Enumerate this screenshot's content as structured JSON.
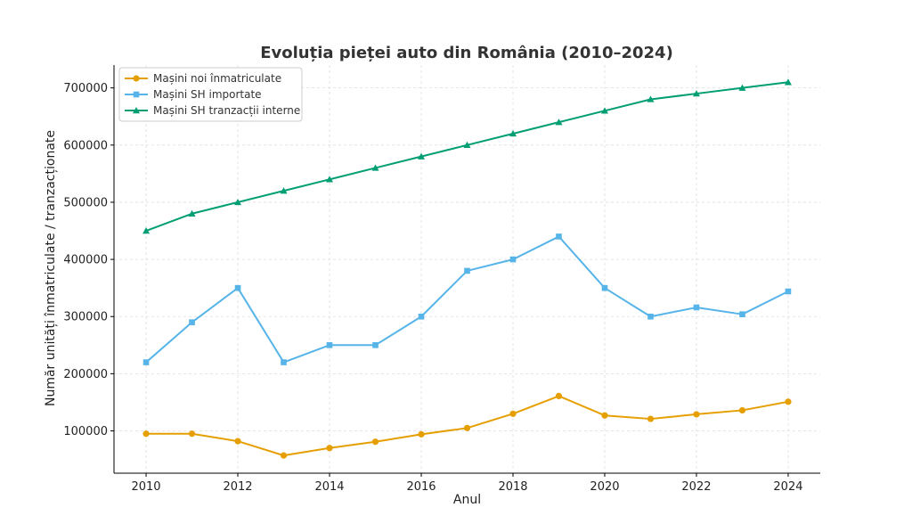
{
  "chart_data": {
    "type": "line",
    "title": "Evoluția pieței auto din România (2010–2024)",
    "xlabel": "Anul",
    "ylabel": "Număr unități înmatriculate / tranzacționate",
    "x": [
      2010,
      2011,
      2012,
      2013,
      2014,
      2015,
      2016,
      2017,
      2018,
      2019,
      2020,
      2021,
      2022,
      2023,
      2024
    ],
    "xticks": [
      2010,
      2012,
      2014,
      2016,
      2018,
      2020,
      2022,
      2024
    ],
    "yticks": [
      100000,
      200000,
      300000,
      400000,
      500000,
      600000,
      700000
    ],
    "xlim": [
      2009.3,
      2024.7
    ],
    "ylim": [
      26000,
      740000
    ],
    "grid": true,
    "legend_position": "top-left",
    "series": [
      {
        "name": "Mașini noi înmatriculate",
        "color": "#E69F00",
        "marker": "circle",
        "values": [
          95000,
          95000,
          82000,
          57000,
          70000,
          81000,
          94000,
          105000,
          130000,
          161000,
          127000,
          121000,
          129000,
          136000,
          151000
        ]
      },
      {
        "name": "Mașini SH importate",
        "color": "#56B4E9",
        "marker": "square",
        "values": [
          220000,
          290000,
          350000,
          220000,
          250000,
          250000,
          300000,
          380000,
          400000,
          440000,
          350000,
          300000,
          316000,
          304000,
          344000
        ]
      },
      {
        "name": "Mașini SH tranzacții interne",
        "color": "#009E73",
        "marker": "triangle",
        "values": [
          450000,
          480000,
          500000,
          520000,
          540000,
          560000,
          580000,
          600000,
          620000,
          640000,
          660000,
          680000,
          690000,
          700000,
          710000
        ]
      }
    ]
  }
}
